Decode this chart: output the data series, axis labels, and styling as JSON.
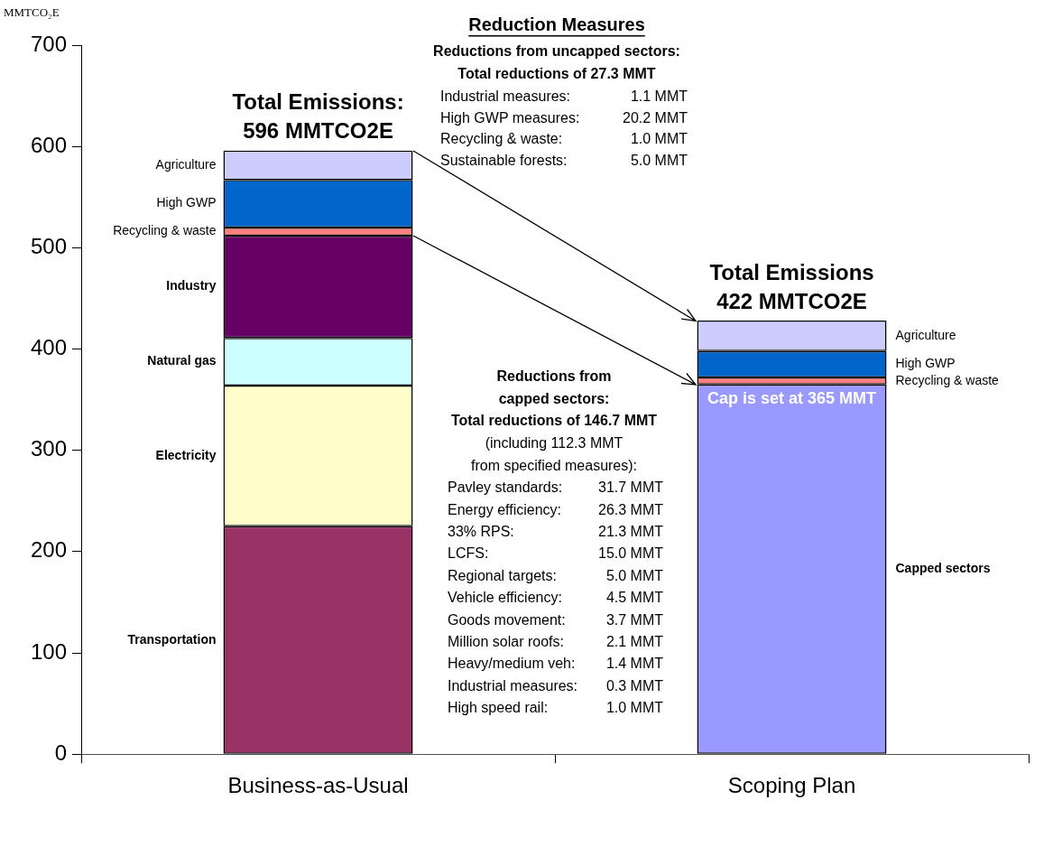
{
  "chart_data": {
    "type": "bar",
    "stacked": true,
    "title": "Reduction Measures",
    "ylabel": "MMTCO₂E",
    "categories": [
      "Business-as-Usual",
      "Scoping Plan"
    ],
    "series": [
      {
        "name": "Transportation",
        "color": "#993366",
        "values": [
          225,
          null
        ]
      },
      {
        "name": "Electricity",
        "color": "#ffffcc",
        "values": [
          139,
          null
        ]
      },
      {
        "name": "Natural gas",
        "color": "#ccffff",
        "values": [
          47,
          null
        ]
      },
      {
        "name": "Industry",
        "color": "#660066",
        "values": [
          101,
          null
        ]
      },
      {
        "name": "Capped sectors",
        "color": "#9999ff",
        "values": [
          null,
          365
        ]
      },
      {
        "name": "Recycling & waste",
        "color": "#ff8080",
        "values": [
          8,
          7
        ]
      },
      {
        "name": "High GWP",
        "color": "#0066cc",
        "values": [
          47,
          26
        ]
      },
      {
        "name": "Agriculture",
        "color": "#ccccff",
        "values": [
          29,
          30
        ]
      }
    ],
    "ylim": [
      0,
      700
    ],
    "yticks": [
      0,
      100,
      200,
      300,
      400,
      500,
      600,
      700
    ],
    "grid": false,
    "legend": false,
    "annotations": [
      {
        "text": "Total Emissions:\n596 MMTCO2E",
        "x": "Business-as-Usual",
        "y": 596
      },
      {
        "text": "Total Emissions\n422 MMTCO2E",
        "x": "Scoping Plan",
        "y": 428
      },
      {
        "text": "Cap is set at 365 MMT",
        "x": "Scoping Plan",
        "y": 365
      },
      "Reductions from uncapped sectors:\nTotal reductions of 27.3 MMT",
      "Industrial measures:\t1.1 MMT\nHigh GWP measures:\t20.2 MMT\nRecycling & waste:\t1.0 MMT\nSustainable forests:\t5.0 MMT",
      "Reductions from\ncapped sectors:\nTotal reductions of 146.7 MMT",
      "(including 112.3 MMT\nfrom specified measures):\nPavley standards:\t31.7 MMT\nEnergy efficiency:\t26.3 MMT\n33% RPS:\t21.3 MMT\nLCFS:\t15.0 MMT\nRegional targets:\t5.0 MMT\nVehicle efficiency:\t4.5 MMT\nGoods movement:\t3.7 MMT\nMillion solar roofs:\t2.1 MMT\nHeavy/medium veh:\t1.4 MMT\nIndustrial measures:\t0.3 MMT\nHigh speed rail:\t1.0 MMT"
    ]
  }
}
